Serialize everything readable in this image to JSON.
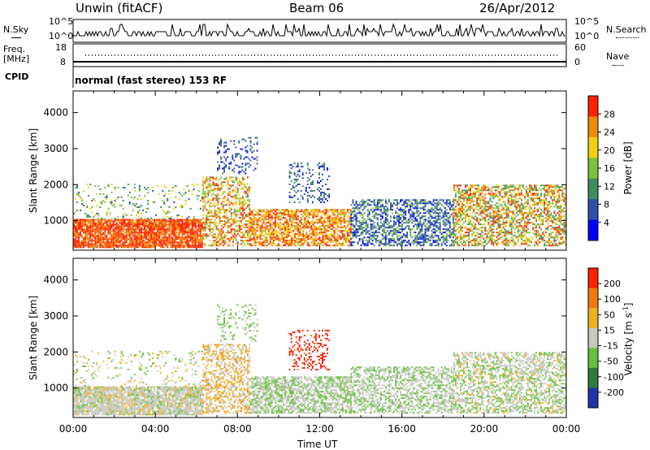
{
  "header": {
    "station": "Unwin (fitACF)",
    "beam": "Beam 06",
    "date": "26/Apr/2012"
  },
  "strip": {
    "nsky_label": "N.Sky",
    "nsky_ticks": [
      "10^5",
      "10^0"
    ],
    "nsearch_label": "N.Search",
    "nsearch_ticks": [
      "10^5",
      "10^0"
    ],
    "freq_label_1": "Freq.",
    "freq_label_2": "[MHz]",
    "freq_ticks": [
      "18",
      "8"
    ],
    "nave_label": "Nave",
    "nave_ticks": [
      "60",
      "0"
    ],
    "cpid_label": "CPID",
    "cpid_text": "normal (fast stereo) 153 RF"
  },
  "chart_data": [
    {
      "type": "heatmap",
      "ylabel": "Slant Range [km]",
      "yticks": [
        "1000",
        "2000",
        "3000",
        "4000"
      ],
      "ylim": [
        180,
        4600
      ],
      "xlim": [
        0,
        24
      ],
      "colorbar_label": "Power [dB]",
      "colorbar_ticks": [
        "4",
        "8",
        "12",
        "16",
        "20",
        "24",
        "28"
      ],
      "colorbar_colors": [
        "#0000ff",
        "#3050a8",
        "#3e8e5e",
        "#7ac23a",
        "#f0d010",
        "#f08a0a",
        "#ff2000"
      ]
    },
    {
      "type": "heatmap",
      "ylabel": "Slant Range [km]",
      "yticks": [
        "1000",
        "2000",
        "3000",
        "4000"
      ],
      "ylim": [
        180,
        4600
      ],
      "xlim": [
        0,
        24
      ],
      "colorbar_label": "Velocity [m s",
      "colorbar_unit_exp": "-1",
      "colorbar_unit_close": "]",
      "colorbar_ticks": [
        "200",
        "100",
        "50",
        "15",
        "-15",
        "-50",
        "-100",
        "-200"
      ],
      "colorbar_colors": [
        "#2233aa",
        "#2e7a40",
        "#66c03c",
        "#c8c8c0",
        "#f0b020",
        "#f07a10",
        "#ff2000"
      ]
    }
  ],
  "xaxis": {
    "ticks": [
      "00:00",
      "04:00",
      "08:00",
      "12:00",
      "16:00",
      "20:00",
      "00:00"
    ],
    "label": "Time UT"
  }
}
